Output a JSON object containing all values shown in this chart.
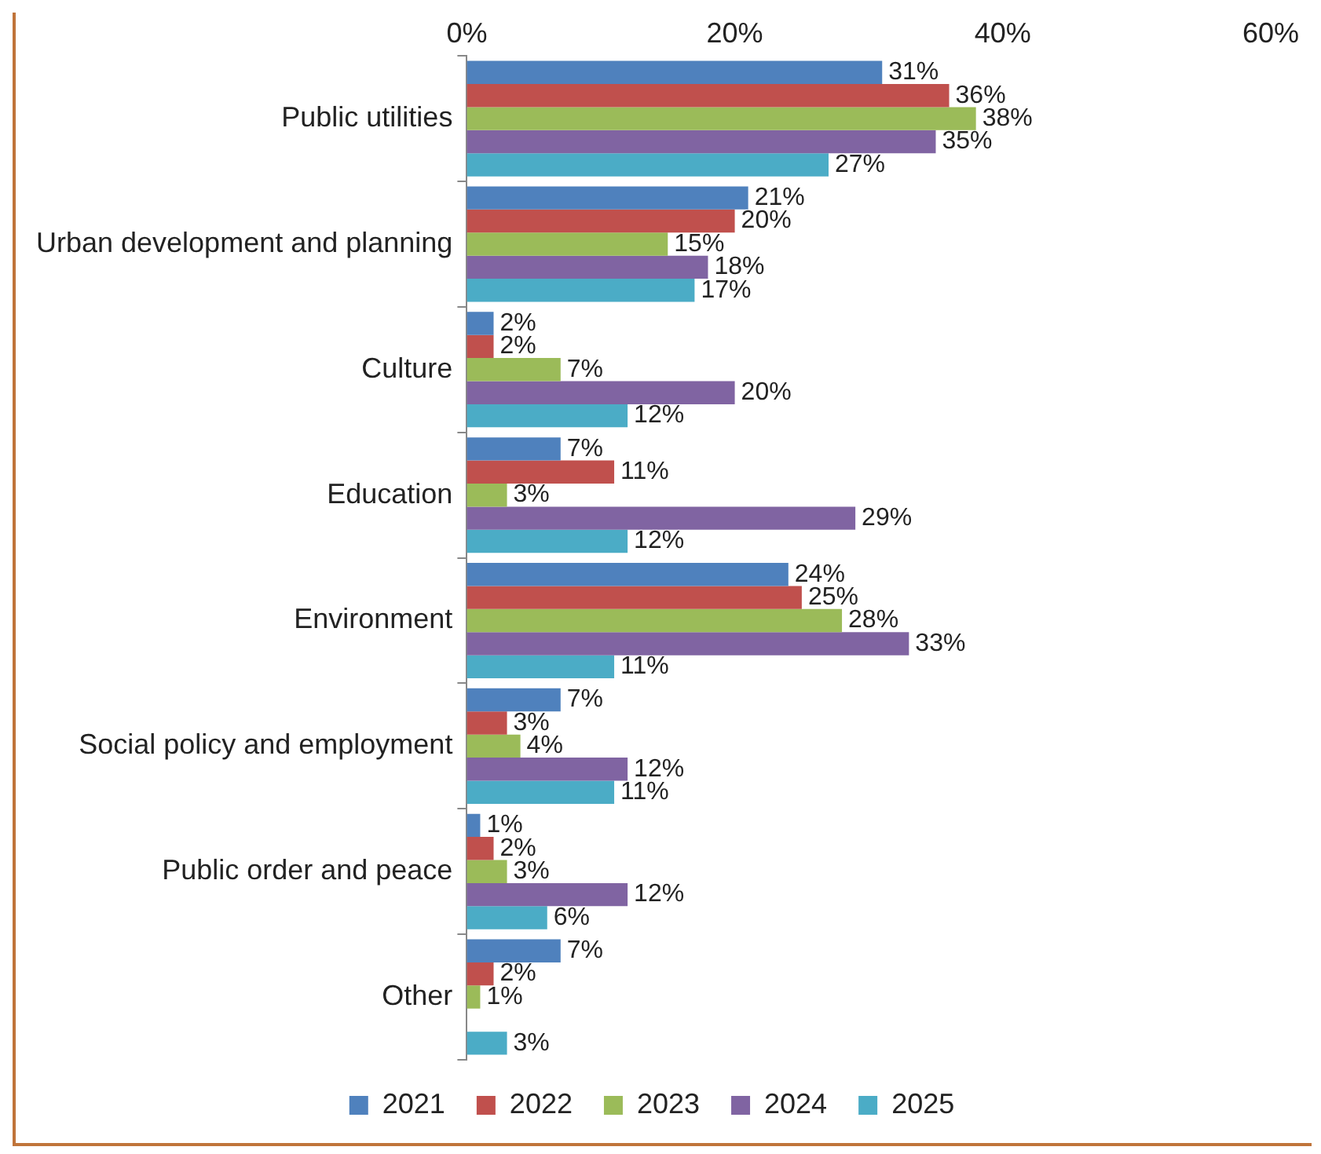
{
  "chart_data": {
    "type": "bar",
    "orientation": "horizontal",
    "categories": [
      "Public utilities",
      "Urban development and planning",
      "Culture",
      "Education",
      "Environment",
      "Social policy and employment",
      "Public order and peace",
      "Other"
    ],
    "series": [
      {
        "name": "2021",
        "color": "#4f81bd",
        "values": [
          31,
          21,
          2,
          7,
          24,
          7,
          1,
          7
        ],
        "value_labels": [
          "31%",
          "21%",
          "2%",
          "7%",
          "24%",
          "7%",
          "1%",
          "7%"
        ]
      },
      {
        "name": "2022",
        "color": "#c0504d",
        "values": [
          36,
          20,
          2,
          11,
          25,
          3,
          2,
          2
        ],
        "value_labels": [
          "36%",
          "20%",
          "2%",
          "11%",
          "25%",
          "3%",
          "2%",
          "2%"
        ]
      },
      {
        "name": "2023",
        "color": "#9bbb59",
        "values": [
          38,
          15,
          7,
          3,
          28,
          4,
          3,
          1
        ],
        "value_labels": [
          "38%",
          "15%",
          "7%",
          "3%",
          "28%",
          "4%",
          "3%",
          "1%"
        ]
      },
      {
        "name": "2024",
        "color": "#8064a2",
        "values": [
          35,
          18,
          20,
          29,
          33,
          12,
          12,
          null
        ],
        "value_labels": [
          "35%",
          "18%",
          "20%",
          "29%",
          "33%",
          "12%",
          "12%",
          null
        ]
      },
      {
        "name": "2025",
        "color": "#4bacc6",
        "values": [
          27,
          17,
          12,
          12,
          11,
          11,
          6,
          3
        ],
        "value_labels": [
          "27%",
          "17%",
          "12%",
          "12%",
          "11%",
          "11%",
          "6%",
          "3%"
        ]
      }
    ],
    "xlim": [
      0,
      60
    ],
    "xticks": [
      {
        "value": 0,
        "label": "0%"
      },
      {
        "value": 20,
        "label": "20%"
      },
      {
        "value": 40,
        "label": "40%"
      },
      {
        "value": 60,
        "label": "60%"
      }
    ],
    "legend": "bottom",
    "grid": false
  }
}
